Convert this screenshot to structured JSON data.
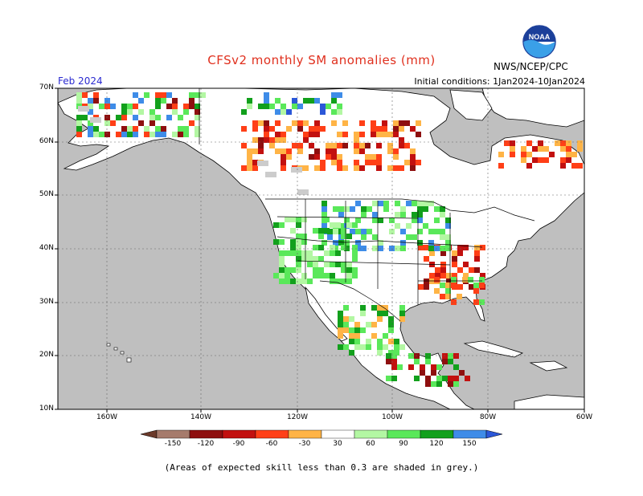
{
  "header": {
    "title": "CFSv2 monthly SM anomalies (mm)",
    "agency": "NWS/NCEP/CPC",
    "month": "Feb 2024",
    "initial_conditions": "Initial conditions: 1Jan2024-10Jan2024",
    "logo_text": "NOAA"
  },
  "axes": {
    "lat_labels": [
      "70N",
      "60N",
      "50N",
      "40N",
      "30N",
      "20N",
      "10N"
    ],
    "lon_labels": [
      "160W",
      "140W",
      "120W",
      "100W",
      "80W",
      "60W"
    ]
  },
  "colorbar": {
    "labels": [
      "-150",
      "-120",
      "-90",
      "-60",
      "-30",
      "30",
      "60",
      "90",
      "120",
      "150"
    ],
    "colors": [
      "#6b3a2a",
      "#a67b6c",
      "#8e0f0f",
      "#c2100f",
      "#ff3f17",
      "#ffb446",
      "#ffffff",
      "#b3f7a3",
      "#5ae85a",
      "#12a01c",
      "#3e8ce8",
      "#2b57d8"
    ]
  },
  "colors": {
    "land": "#ffffff",
    "ocean": "#bfbfbf",
    "low_skill": "#cccccc",
    "border": "#000000"
  },
  "footnote": "(Areas of expected skill less than 0.3 are shaded in grey.)"
}
